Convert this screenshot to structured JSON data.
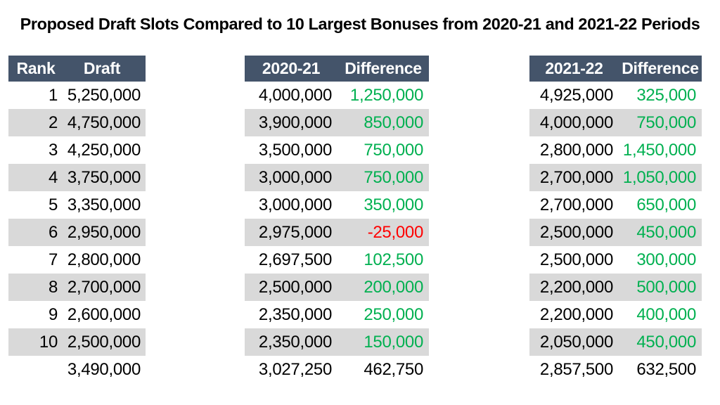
{
  "title": "Proposed Draft Slots Compared to 10 Largest Bonuses from 2020-21 and 2021-22 Periods",
  "colors": {
    "header_bg": "#44546A",
    "header_text": "#FFFFFF",
    "row_stripe": "#D9D9D9",
    "positive": "#00B050",
    "negative": "#FF0000",
    "body_text": "#000000",
    "background": "#FFFFFF"
  },
  "draft_table": {
    "headers": {
      "rank": "Rank",
      "value": "Draft"
    },
    "rows": [
      {
        "rank": "1",
        "value": "5,250,000"
      },
      {
        "rank": "2",
        "value": "4,750,000"
      },
      {
        "rank": "3",
        "value": "4,250,000"
      },
      {
        "rank": "4",
        "value": "3,750,000"
      },
      {
        "rank": "5",
        "value": "3,350,000"
      },
      {
        "rank": "6",
        "value": "2,950,000"
      },
      {
        "rank": "7",
        "value": "2,800,000"
      },
      {
        "rank": "8",
        "value": "2,700,000"
      },
      {
        "rank": "9",
        "value": "2,600,000"
      },
      {
        "rank": "10",
        "value": "2,500,000"
      }
    ],
    "average": "3,490,000"
  },
  "period1_table": {
    "headers": {
      "value": "2020-21",
      "diff": "Difference"
    },
    "rows": [
      {
        "value": "4,000,000",
        "diff": "1,250,000"
      },
      {
        "value": "3,900,000",
        "diff": "850,000"
      },
      {
        "value": "3,500,000",
        "diff": "750,000"
      },
      {
        "value": "3,000,000",
        "diff": "750,000"
      },
      {
        "value": "3,000,000",
        "diff": "350,000"
      },
      {
        "value": "2,975,000",
        "diff": "-25,000"
      },
      {
        "value": "2,697,500",
        "diff": "102,500"
      },
      {
        "value": "2,500,000",
        "diff": "200,000"
      },
      {
        "value": "2,350,000",
        "diff": "250,000"
      },
      {
        "value": "2,350,000",
        "diff": "150,000"
      }
    ],
    "average": {
      "value": "3,027,250",
      "diff": "462,750"
    }
  },
  "period2_table": {
    "headers": {
      "value": "2021-22",
      "diff": "Difference"
    },
    "rows": [
      {
        "value": "4,925,000",
        "diff": "325,000"
      },
      {
        "value": "4,000,000",
        "diff": "750,000"
      },
      {
        "value": "2,800,000",
        "diff": "1,450,000"
      },
      {
        "value": "2,700,000",
        "diff": "1,050,000"
      },
      {
        "value": "2,700,000",
        "diff": "650,000"
      },
      {
        "value": "2,500,000",
        "diff": "450,000"
      },
      {
        "value": "2,500,000",
        "diff": "300,000"
      },
      {
        "value": "2,200,000",
        "diff": "500,000"
      },
      {
        "value": "2,200,000",
        "diff": "400,000"
      },
      {
        "value": "2,050,000",
        "diff": "450,000"
      }
    ],
    "average": {
      "value": "2,857,500",
      "diff": "632,500"
    }
  },
  "chart_data": {
    "type": "table",
    "title": "Proposed Draft Slots Compared to 10 Largest Bonuses from 2020-21 and 2021-22 Periods",
    "columns": [
      "Rank",
      "Draft",
      "2020-21",
      "Difference",
      "2021-22",
      "Difference"
    ],
    "rows": [
      [
        1,
        5250000,
        4000000,
        1250000,
        4925000,
        325000
      ],
      [
        2,
        4750000,
        3900000,
        850000,
        4000000,
        750000
      ],
      [
        3,
        4250000,
        3500000,
        750000,
        2800000,
        1450000
      ],
      [
        4,
        3750000,
        3000000,
        750000,
        2700000,
        1050000
      ],
      [
        5,
        3350000,
        3000000,
        350000,
        2700000,
        650000
      ],
      [
        6,
        2950000,
        2975000,
        -25000,
        2500000,
        450000
      ],
      [
        7,
        2800000,
        2697500,
        102500,
        2500000,
        300000
      ],
      [
        8,
        2700000,
        2500000,
        200000,
        2200000,
        500000
      ],
      [
        9,
        2600000,
        2350000,
        250000,
        2200000,
        400000
      ],
      [
        10,
        2500000,
        2350000,
        150000,
        2050000,
        450000
      ]
    ],
    "averages_row": [
      null,
      3490000,
      3027250,
      462750,
      2857500,
      632500
    ],
    "layout_hints": {
      "zebra_striping": true,
      "negative_values_red": true,
      "positive_differences_green": true,
      "three_table_groups": [
        "Rank/Draft",
        "2020-21/Difference",
        "2021-22/Difference"
      ]
    }
  }
}
